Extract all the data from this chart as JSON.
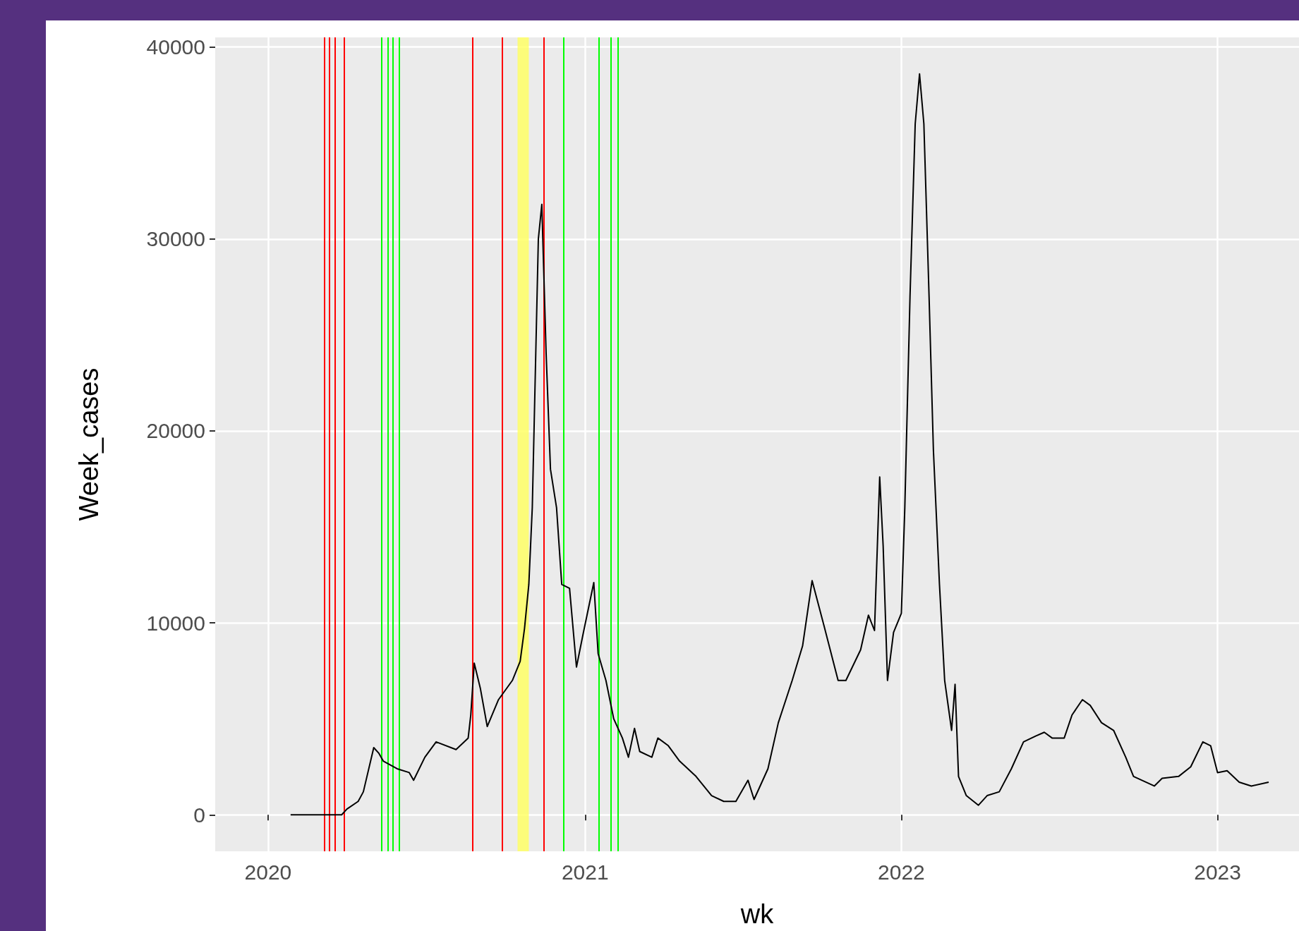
{
  "chart_data": {
    "type": "line",
    "xlabel": "wk",
    "ylabel": "Week_cases",
    "x": [
      "2020-01-27",
      "2020-03-26",
      "2020-04-01",
      "2020-04-14",
      "2020-04-20",
      "2020-05-02",
      "2020-05-08",
      "2020-05-13",
      "2020-05-29",
      "2020-06-12",
      "2020-06-17",
      "2020-06-30",
      "2020-07-13",
      "2020-08-05",
      "2020-08-19",
      "2020-08-22",
      "2020-08-26",
      "2020-09-02",
      "2020-09-10",
      "2020-09-23",
      "2020-10-09",
      "2020-10-18",
      "2020-10-23",
      "2020-10-28",
      "2020-11-01",
      "2020-11-05",
      "2020-11-08",
      "2020-11-12",
      "2020-11-17",
      "2020-11-22",
      "2020-11-29",
      "2020-12-05",
      "2020-12-14",
      "2020-12-22",
      "2020-12-30",
      "2021-01-11",
      "2021-01-16",
      "2021-01-25",
      "2021-02-03",
      "2021-02-13",
      "2021-02-20",
      "2021-02-27",
      "2021-03-05",
      "2021-03-19",
      "2021-03-26",
      "2021-04-07",
      "2021-04-20",
      "2021-05-09",
      "2021-05-27",
      "2021-06-10",
      "2021-06-24",
      "2021-07-08",
      "2021-07-15",
      "2021-07-31",
      "2021-08-12",
      "2021-08-28",
      "2021-09-09",
      "2021-09-20",
      "2021-10-04",
      "2021-10-20",
      "2021-10-29",
      "2021-11-15",
      "2021-11-24",
      "2021-12-01",
      "2021-12-07",
      "2021-12-11",
      "2021-12-16",
      "2021-12-23",
      "2022-01-01",
      "2022-01-05",
      "2022-01-11",
      "2022-01-17",
      "2022-01-22",
      "2022-01-27",
      "2022-02-02",
      "2022-02-07",
      "2022-02-14",
      "2022-02-20",
      "2022-02-28",
      "2022-03-04",
      "2022-03-08",
      "2022-03-17",
      "2022-03-31",
      "2022-04-10",
      "2022-04-24",
      "2022-05-08",
      "2022-05-22",
      "2022-06-05",
      "2022-06-15",
      "2022-06-24",
      "2022-07-08",
      "2022-07-17",
      "2022-07-29",
      "2022-08-07",
      "2022-08-20",
      "2022-09-03",
      "2022-09-17",
      "2022-09-26",
      "2022-10-20",
      "2022-10-29",
      "2022-11-17",
      "2022-12-01",
      "2022-12-15",
      "2022-12-24",
      "2023-01-01",
      "2023-01-12",
      "2023-01-26",
      "2023-02-09",
      "2023-03-01"
    ],
    "series": [
      {
        "color": "#000000",
        "values": [
          0,
          0,
          300,
          700,
          1200,
          3500,
          3200,
          2800,
          2400,
          2200,
          1800,
          3000,
          3800,
          3400,
          4000,
          5200,
          7900,
          6600,
          4600,
          6000,
          7000,
          8000,
          9700,
          12000,
          16000,
          24000,
          30000,
          31800,
          24000,
          18000,
          16000,
          12000,
          11800,
          7700,
          9500,
          12100,
          8400,
          7000,
          5000,
          4000,
          3000,
          4500,
          3300,
          3000,
          4000,
          3600,
          2800,
          2000,
          1000,
          700,
          700,
          1800,
          800,
          2400,
          4800,
          7000,
          8800,
          12200,
          9800,
          7000,
          7000,
          8600,
          10400,
          9600,
          17600,
          14000,
          7000,
          9500,
          10500,
          16000,
          27000,
          36000,
          38600,
          36000,
          27000,
          19000,
          12000,
          7000,
          4400,
          6800,
          2000,
          1000,
          500,
          1000,
          1200,
          2400,
          3800,
          4100,
          4300,
          4000,
          4000,
          5200,
          6000,
          5700,
          4800,
          4400,
          3000,
          2000,
          1500,
          1900,
          2000,
          2500,
          3800,
          3600,
          2200,
          2300,
          1700,
          1500,
          1700
        ]
      }
    ],
    "xlim": [
      "2019-11-01",
      "2023-04-05"
    ],
    "xticks": [
      {
        "value": "2020-01-01",
        "label": "2020"
      },
      {
        "value": "2021-01-01",
        "label": "2021"
      },
      {
        "value": "2022-01-01",
        "label": "2022"
      },
      {
        "value": "2023-01-01",
        "label": "2023"
      }
    ],
    "ylim": [
      -1900,
      40500
    ],
    "yticks": [
      0,
      10000,
      20000,
      30000,
      40000
    ],
    "grid": true,
    "marker": "none",
    "line_style": "solid",
    "ref_lines": [
      {
        "axis": "x",
        "value": "2020-03-06",
        "color": "#ff0000"
      },
      {
        "axis": "x",
        "value": "2020-03-12",
        "color": "#ff0000"
      },
      {
        "axis": "x",
        "value": "2020-03-18",
        "color": "#ff0000"
      },
      {
        "axis": "x",
        "value": "2020-03-29",
        "color": "#ff0000"
      },
      {
        "axis": "x",
        "value": "2020-05-11",
        "color": "#00ff00"
      },
      {
        "axis": "x",
        "value": "2020-05-18",
        "color": "#00ff00"
      },
      {
        "axis": "x",
        "value": "2020-05-24",
        "color": "#00ff00"
      },
      {
        "axis": "x",
        "value": "2020-05-31",
        "color": "#00ff00"
      },
      {
        "axis": "x",
        "value": "2020-08-24",
        "color": "#ff0000"
      },
      {
        "axis": "x",
        "value": "2020-09-27",
        "color": "#ff0000"
      },
      {
        "axis": "x",
        "value": "2020-11-14",
        "color": "#ff0000"
      },
      {
        "axis": "x",
        "value": "2020-12-07",
        "color": "#00ff00"
      },
      {
        "axis": "x",
        "value": "2021-01-17",
        "color": "#00ff00"
      },
      {
        "axis": "x",
        "value": "2021-01-31",
        "color": "#00ff00"
      },
      {
        "axis": "x",
        "value": "2021-02-08",
        "color": "#00ff00"
      }
    ],
    "bands": [
      {
        "axis": "x",
        "from": "2020-10-15",
        "to": "2020-10-28",
        "color": "#ffff66"
      }
    ]
  }
}
